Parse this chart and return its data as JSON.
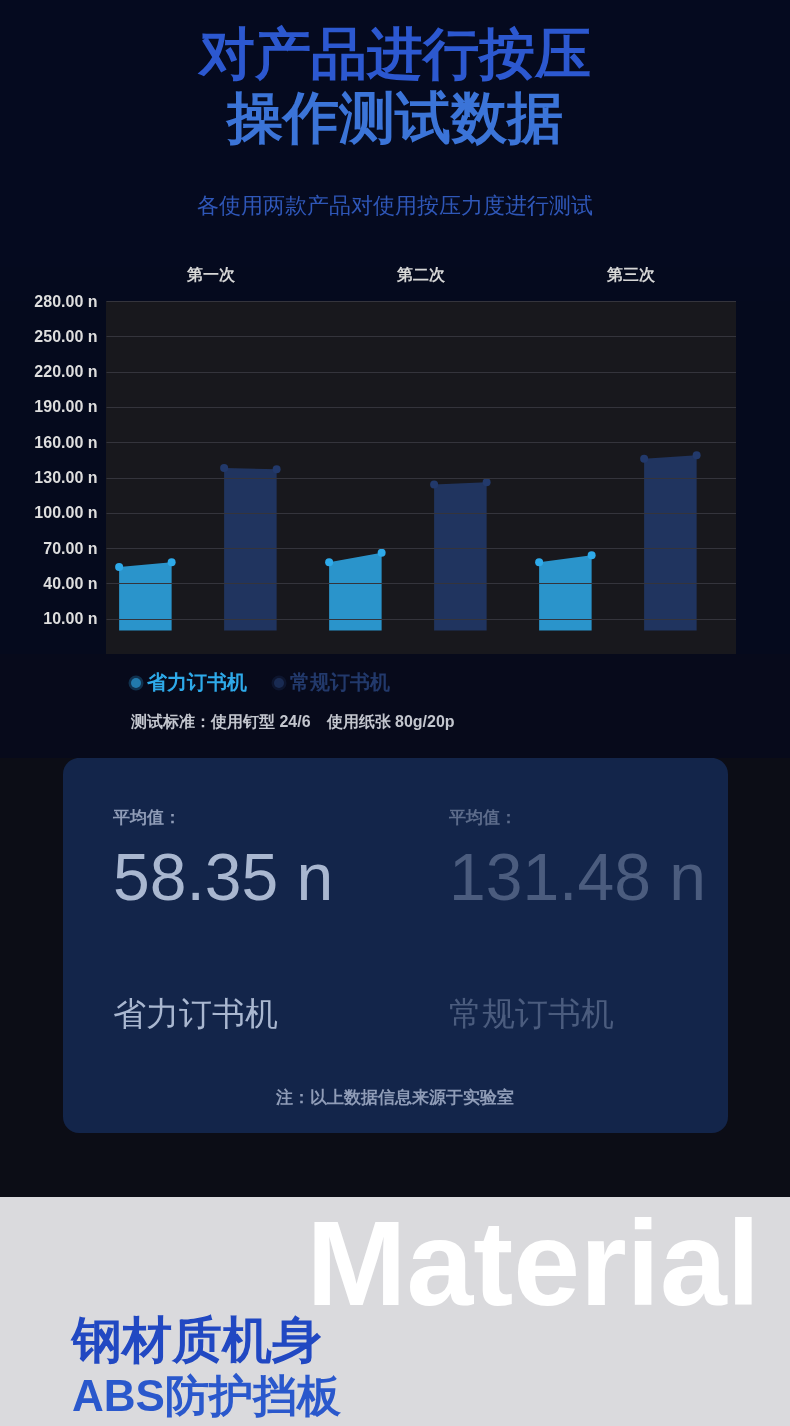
{
  "chart_data": [
    {
      "type": "other",
      "title": "对产品进行按压操作测试数据",
      "subtitle": "各使用两款产品对使用按压力度进行测试"
    },
    {
      "type": "area",
      "categories": [
        null,
        null,
        null,
        null,
        null,
        null,
        null,
        null,
        null,
        null,
        null,
        null
      ],
      "series": [
        {
          "name": "省力订书机",
          "color": "#2eaaea",
          "values": [
            54,
            58,
            null,
            null,
            58,
            66,
            null,
            null,
            58,
            64,
            null,
            null
          ]
        },
        {
          "name": "常规订书机",
          "color": "#22396b",
          "values": [
            null,
            null,
            138,
            137,
            null,
            null,
            124,
            126,
            null,
            null,
            146,
            149
          ]
        }
      ],
      "ylim": [
        -20,
        280
      ],
      "yticks": [
        {
          "value": 10,
          "label": "10.00 n"
        },
        {
          "value": 40,
          "label": "40.00 n"
        },
        {
          "value": 70,
          "label": "70.00 n"
        },
        {
          "value": 100,
          "label": "100.00 n"
        },
        {
          "value": 130,
          "label": "130.00 n"
        },
        {
          "value": 160,
          "label": "160.00 n"
        },
        {
          "value": 190,
          "label": "190.00 n"
        },
        {
          "value": 220,
          "label": "220.00 n"
        },
        {
          "value": 250,
          "label": "250.00 n"
        },
        {
          "value": 280,
          "label": "280.00 n"
        }
      ],
      "grid": "y",
      "marker": "circle",
      "tick_labels": "y",
      "legend": "bottom",
      "annotations": [
        "第一次",
        "第二次",
        "第三次"
      ]
    },
    {
      "type": "other",
      "annotations": [
        "测试标准：使用钉型 24/6　使用纸张 80g/20p"
      ]
    },
    {
      "type": "other",
      "annotations": [
        "平均值：",
        "58.35 n",
        "省力订书机",
        "平均值：",
        "131.48 n",
        "常规订书机",
        "注：以上数据信息来源于实验室"
      ]
    },
    {
      "type": "other",
      "annotations": [
        "Material",
        "钢材质机身",
        "ABS防护挡板"
      ]
    }
  ]
}
